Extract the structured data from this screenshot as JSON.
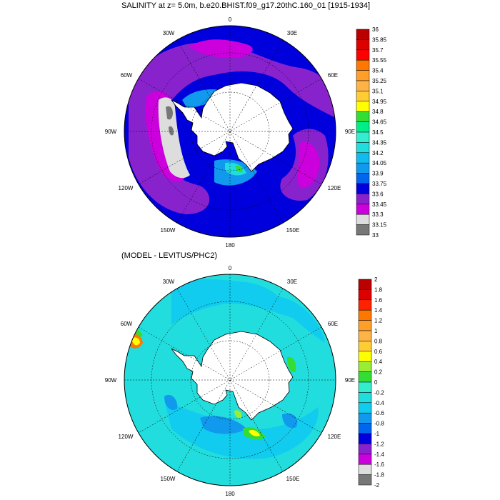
{
  "chart_data": [
    {
      "type": "heatmap",
      "projection": "south-polar-stereographic",
      "title": "SALINITY at z=   5.0m, b.e20.BHIST.f09_g17.20thC.160_01 [1915-1934]",
      "lon_labels": [
        "0",
        "30E",
        "60E",
        "90E",
        "120E",
        "150E",
        "180",
        "150W",
        "120W",
        "90W",
        "60W",
        "30W"
      ],
      "colorbar": {
        "levels": [
          "36",
          "35.85",
          "35.7",
          "35.55",
          "35.4",
          "35.25",
          "35.1",
          "34.95",
          "34.8",
          "34.65",
          "34.5",
          "34.35",
          "34.2",
          "34.05",
          "33.9",
          "33.75",
          "33.6",
          "33.45",
          "33.3",
          "33.15",
          "33"
        ],
        "colors": [
          "#bb0000",
          "#dd0000",
          "#ff0000",
          "#ff7700",
          "#ff9f2a",
          "#ffb347",
          "#ffcc33",
          "#ffff00",
          "#33dd33",
          "#00ee88",
          "#33eecc",
          "#22dddd",
          "#11bbee",
          "#1199ee",
          "#0066ee",
          "#0000dd",
          "#8822cc",
          "#cc00dd",
          "#dddddd",
          "#777777"
        ]
      },
      "colors": {
        "ocean": "#0000dd",
        "land": "#ffffff",
        "outline": "#000000"
      }
    },
    {
      "type": "heatmap",
      "projection": "south-polar-stereographic",
      "title": "(MODEL - LEVITUS/PHC2)",
      "lon_labels": [
        "0",
        "30E",
        "60E",
        "90E",
        "120E",
        "150E",
        "180",
        "150W",
        "120W",
        "90W",
        "60W",
        "30W"
      ],
      "colorbar": {
        "levels": [
          "2",
          "1.8",
          "1.6",
          "1.4",
          "1.2",
          "1",
          "0.8",
          "0.6",
          "0.4",
          "0.2",
          "0",
          "-0.2",
          "-0.4",
          "-0.6",
          "-0.8",
          "-1",
          "-1.2",
          "-1.4",
          "-1.6",
          "-1.8",
          "-2"
        ],
        "colors": [
          "#bb0000",
          "#dd0000",
          "#ff2200",
          "#ff7700",
          "#ff9f2a",
          "#ffb347",
          "#ffcc33",
          "#ffff00",
          "#99ee33",
          "#33dd33",
          "#33eecc",
          "#22dddd",
          "#11ccee",
          "#1199ee",
          "#0066ee",
          "#0000dd",
          "#8822cc",
          "#cc00dd",
          "#dddddd",
          "#777777"
        ]
      },
      "colors": {
        "ocean": "#22dddd",
        "land": "#ffffff",
        "outline": "#000000"
      }
    }
  ]
}
